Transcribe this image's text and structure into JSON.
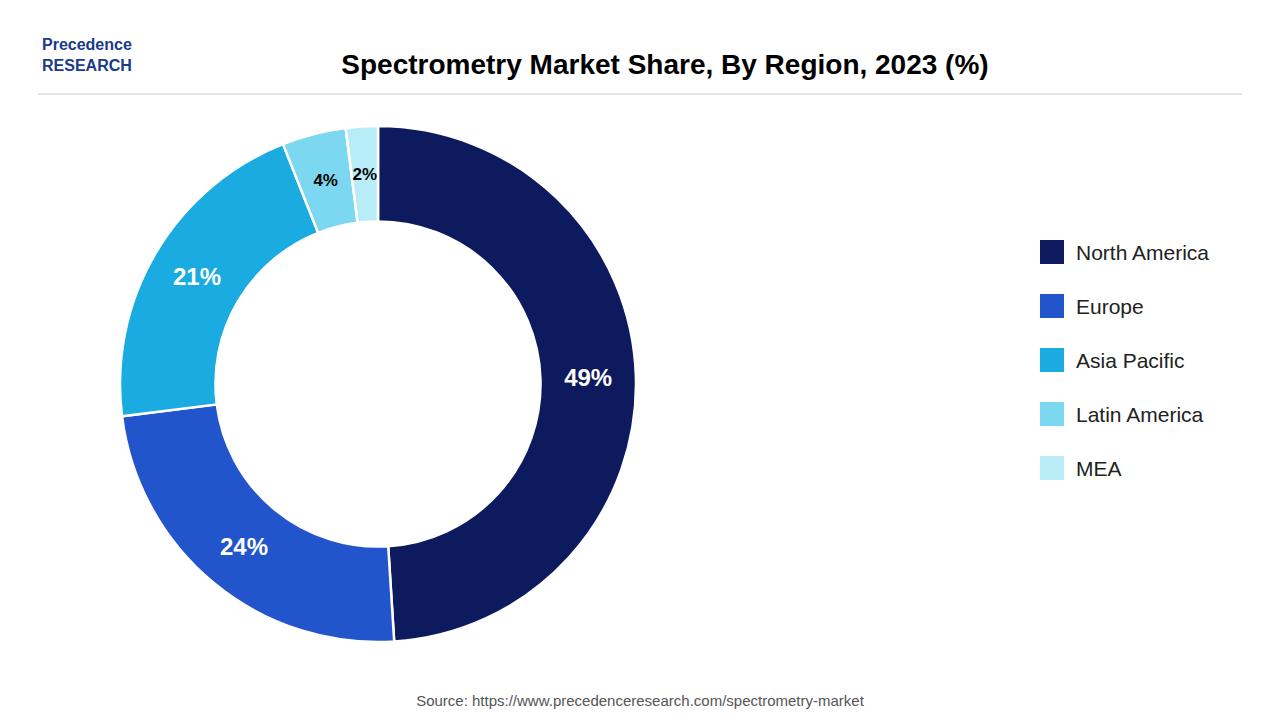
{
  "chart_data": {
    "type": "pie",
    "title": "Spectrometry Market Share, By Region, 2023 (%)",
    "categories": [
      "North America",
      "Europe",
      "Asia Pacific",
      "Latin America",
      "MEA"
    ],
    "values": [
      49,
      24,
      21,
      4,
      2
    ],
    "value_labels": [
      "49%",
      "24%",
      "21%",
      "4%",
      "2%"
    ],
    "colors": [
      "#0d1b5e",
      "#2255cc",
      "#1aabe0",
      "#7cd8f0",
      "#b8edf8"
    ],
    "data_labels": true,
    "legend": "right",
    "annotations": [
      "Precedence",
      "RESEARCH",
      "Source: https://www.precedenceresearch.com/spectrometry-market"
    ]
  }
}
